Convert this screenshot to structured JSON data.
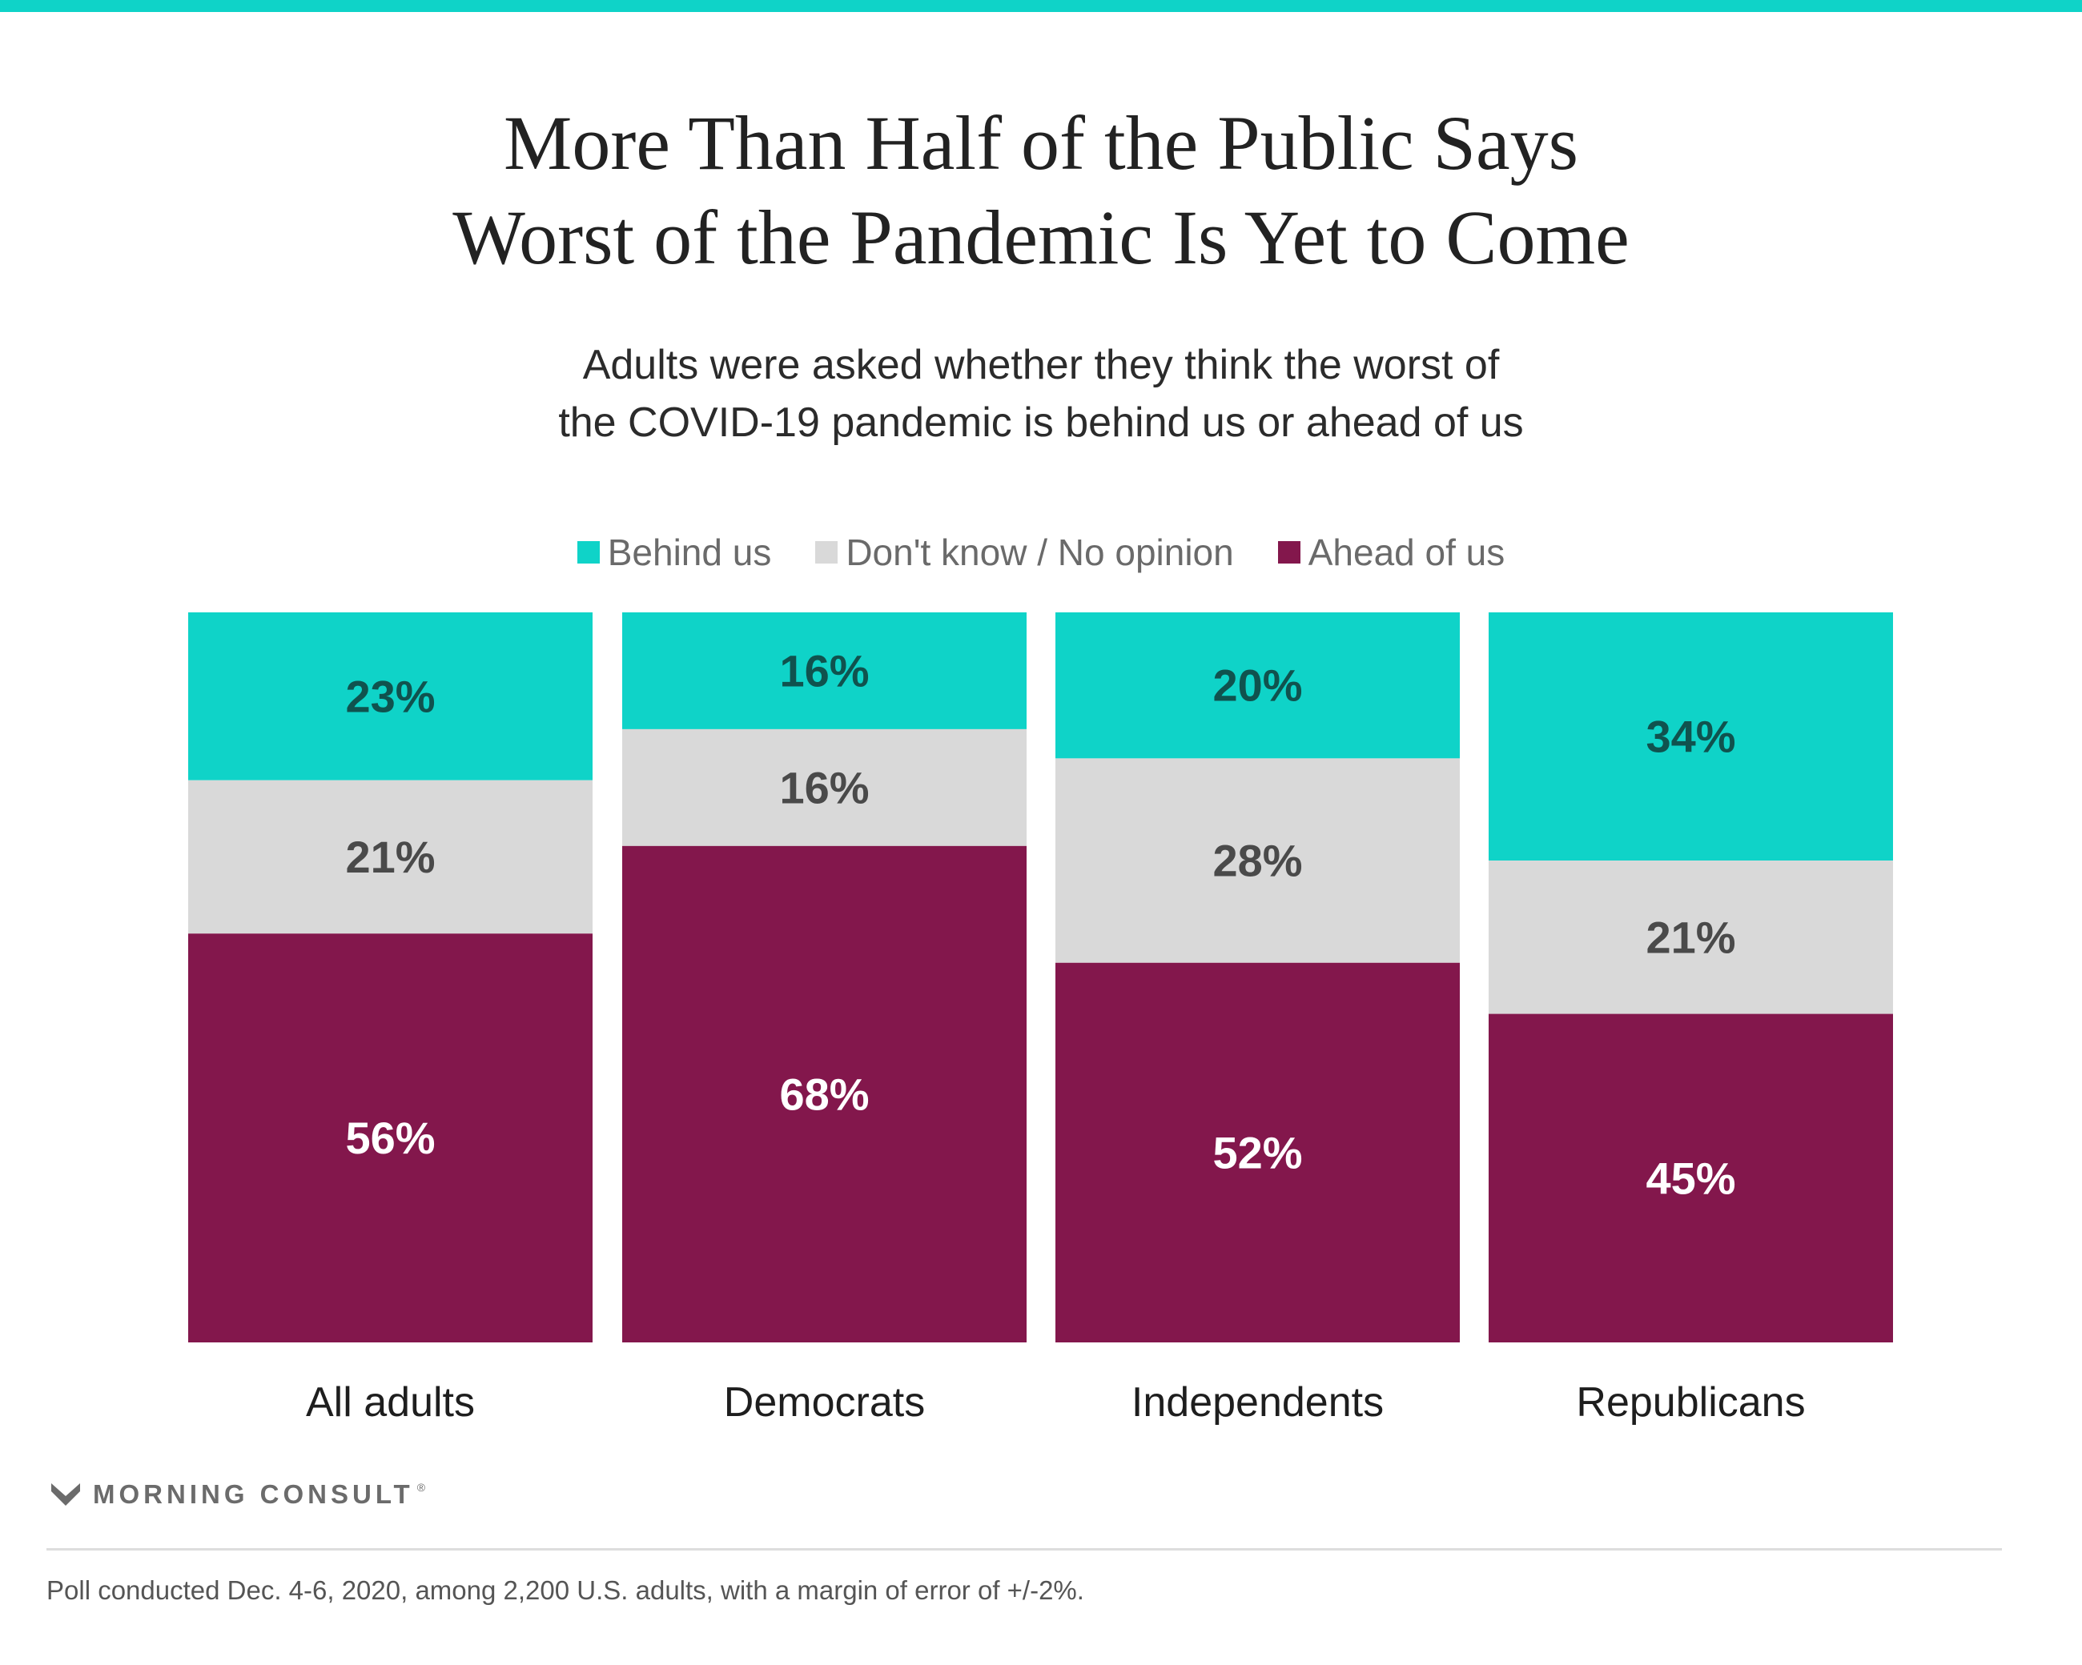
{
  "title_lines": [
    "More Than Half of the Public Says",
    "Worst of the Pandemic Is Yet to Come"
  ],
  "subtitle_lines": [
    "Adults were asked whether they think the worst of",
    "the COVID-19 pandemic is behind us or ahead of us"
  ],
  "legend": [
    {
      "label": "Behind us",
      "color": "#0fd3c8"
    },
    {
      "label": "Don't know / No opinion",
      "color": "#d9d9d9"
    },
    {
      "label": "Ahead of us",
      "color": "#83174c"
    }
  ],
  "chart_data": {
    "type": "bar",
    "stacked": true,
    "normalized_to_100": true,
    "categories": [
      "All adults",
      "Democrats",
      "Independents",
      "Republicans"
    ],
    "series": [
      {
        "name": "Behind us",
        "values": [
          23,
          16,
          20,
          34
        ],
        "labels": [
          "23%",
          "16%",
          "20%",
          "34%"
        ],
        "color": "#0fd3c8",
        "label_color": "#10524e"
      },
      {
        "name": "Don't know / No opinion",
        "values": [
          21,
          16,
          28,
          21
        ],
        "labels": [
          "21%",
          "16%",
          "28%",
          "21%"
        ],
        "color": "#d9d9d9",
        "label_color": "#4a4a4a"
      },
      {
        "name": "Ahead of us",
        "values": [
          56,
          68,
          52,
          45
        ],
        "labels": [
          "56%",
          "68%",
          "52%",
          "45%"
        ],
        "color": "#83174c",
        "label_color": "#ffffff"
      }
    ],
    "legend_position": "top-center",
    "grid": false
  },
  "brand": {
    "name": "MORNING CONSULT",
    "trademark": "®",
    "icon": "morning-consult-logo-icon"
  },
  "footnote": "Poll conducted Dec. 4-6, 2020, among 2,200 U.S. adults, with a margin of error of +/-2%."
}
